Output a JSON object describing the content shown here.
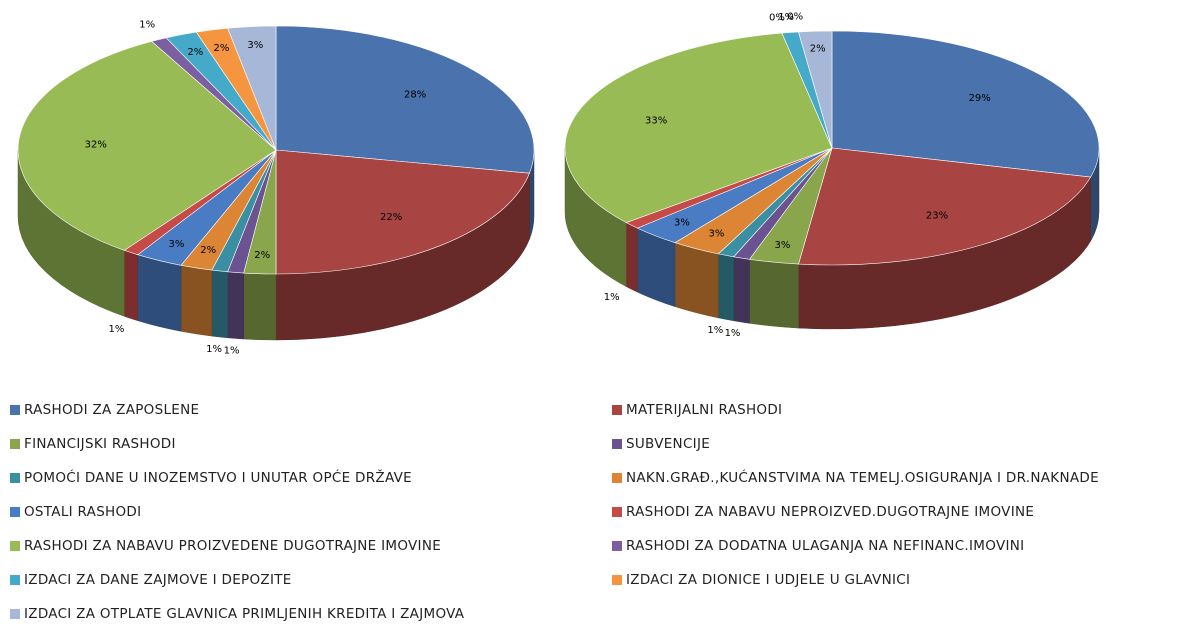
{
  "chart_data": {
    "type": "pie",
    "categories": [
      "RASHODI ZA ZAPOSLENE",
      "MATERIJALNI RASHODI",
      "FINANCIJSKI RASHODI",
      "SUBVENCIJE",
      "POMOĆI DANE U INOZEMSTVO  I UNUTAR  OPĆE DRŽAVE",
      "NAKN.GRAĐ.,KUĆANSTVIMA  NA TEMELJ.OSIGURANJA  I DR.NAKNADE",
      "OSTALI RASHODI",
      "RASHODI ZA NABAVU NEPROIZVED.DUGOTRAJNE  IMOVINE",
      "RASHODI ZA NABAVU PROIZVEDENE  DUGOTRAJNE IMOVINE",
      "RASHODI ZA DODATNA ULAGANJA NA NEFINANC.IMOVINI",
      "IZDACI ZA DANE ZAJMOVE I DEPOZITE",
      "IZDACI ZA DIONICE I UDJELE U GLAVNICI",
      "IZDACI ZA OTPLATE GLAVNICA PRIMLJENIH KREDITA I ZAJMOVA"
    ],
    "colors": [
      "#4a72ad",
      "#a84442",
      "#8aa64c",
      "#6b5290",
      "#3a8fa3",
      "#dc8535",
      "#4a7cc4",
      "#c64a48",
      "#98bb55",
      "#7c5fa0",
      "#45a9c9",
      "#f5953f",
      "#a7b7d8"
    ],
    "series": [
      {
        "values": [
          28,
          22,
          2,
          1,
          1,
          2,
          3,
          1,
          32,
          1,
          2,
          2,
          3
        ],
        "value_labels": [
          "28%",
          "22%",
          "2%",
          "1%",
          "1%",
          "2%",
          "3%",
          "1%",
          "32%",
          "1%",
          "2%",
          "2%",
          "3%"
        ]
      },
      {
        "values": [
          29,
          23,
          3,
          1,
          1,
          3,
          3,
          1,
          33,
          0,
          1,
          0,
          2
        ],
        "value_labels": [
          "29%",
          "23%",
          "3%",
          "1%",
          "1%",
          "3%",
          "3%",
          "1%",
          "33%",
          "0%",
          "1%",
          "0%",
          "2%"
        ]
      }
    ]
  }
}
